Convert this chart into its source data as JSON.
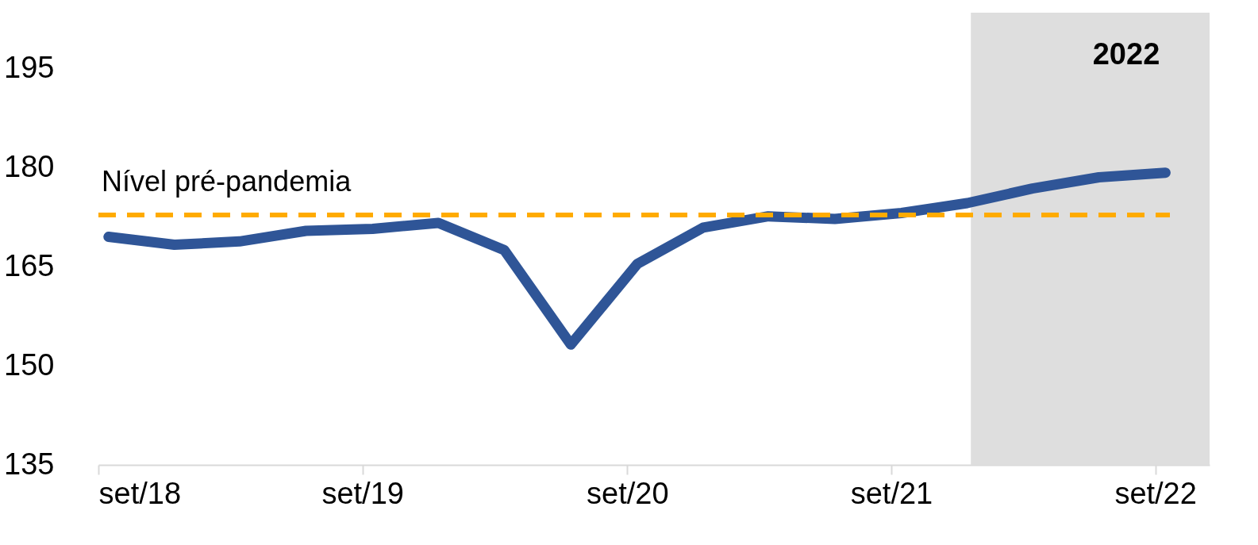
{
  "chart_data": {
    "type": "line",
    "x": [
      "2018-09-15",
      "2018-12-15",
      "2019-03-15",
      "2019-06-15",
      "2019-09-15",
      "2019-12-15",
      "2020-03-15",
      "2020-06-15",
      "2020-09-15",
      "2020-12-15",
      "2021-03-15",
      "2021-06-15",
      "2021-09-15",
      "2021-12-15",
      "2022-03-15",
      "2022-06-15",
      "2022-09-15"
    ],
    "series": [
      {
        "color": "#2f5597",
        "values": [
          169.5,
          168.3,
          168.8,
          170.4,
          170.7,
          171.6,
          167.5,
          153.2,
          165.4,
          170.9,
          172.6,
          172.2,
          173.1,
          174.6,
          176.8,
          178.5,
          179.2
        ]
      }
    ],
    "xlim": [
      "2018-09-01",
      "2022-11-15"
    ],
    "xticks": [
      {
        "value": "2018-09-01",
        "label": "set/18"
      },
      {
        "value": "2019-09-01",
        "label": "set/19"
      },
      {
        "value": "2020-09-01",
        "label": "set/20"
      },
      {
        "value": "2021-09-01",
        "label": "set/21"
      },
      {
        "value": "2022-09-01",
        "label": "set/22"
      }
    ],
    "ylim": [
      135,
      195
    ],
    "yticks": [
      135,
      150,
      165,
      180,
      195
    ],
    "ref_lines": [
      {
        "axis": "y",
        "value": 172.8,
        "label": "Nível pré-pandemia",
        "color": "#ffab00",
        "line_style": "dashed"
      }
    ],
    "bands": [
      {
        "axis": "x",
        "from": "2021-12-20",
        "to": "2022-11-15",
        "label": "2022",
        "color": "#dedede"
      }
    ],
    "grid": false,
    "line_style": "solid"
  }
}
